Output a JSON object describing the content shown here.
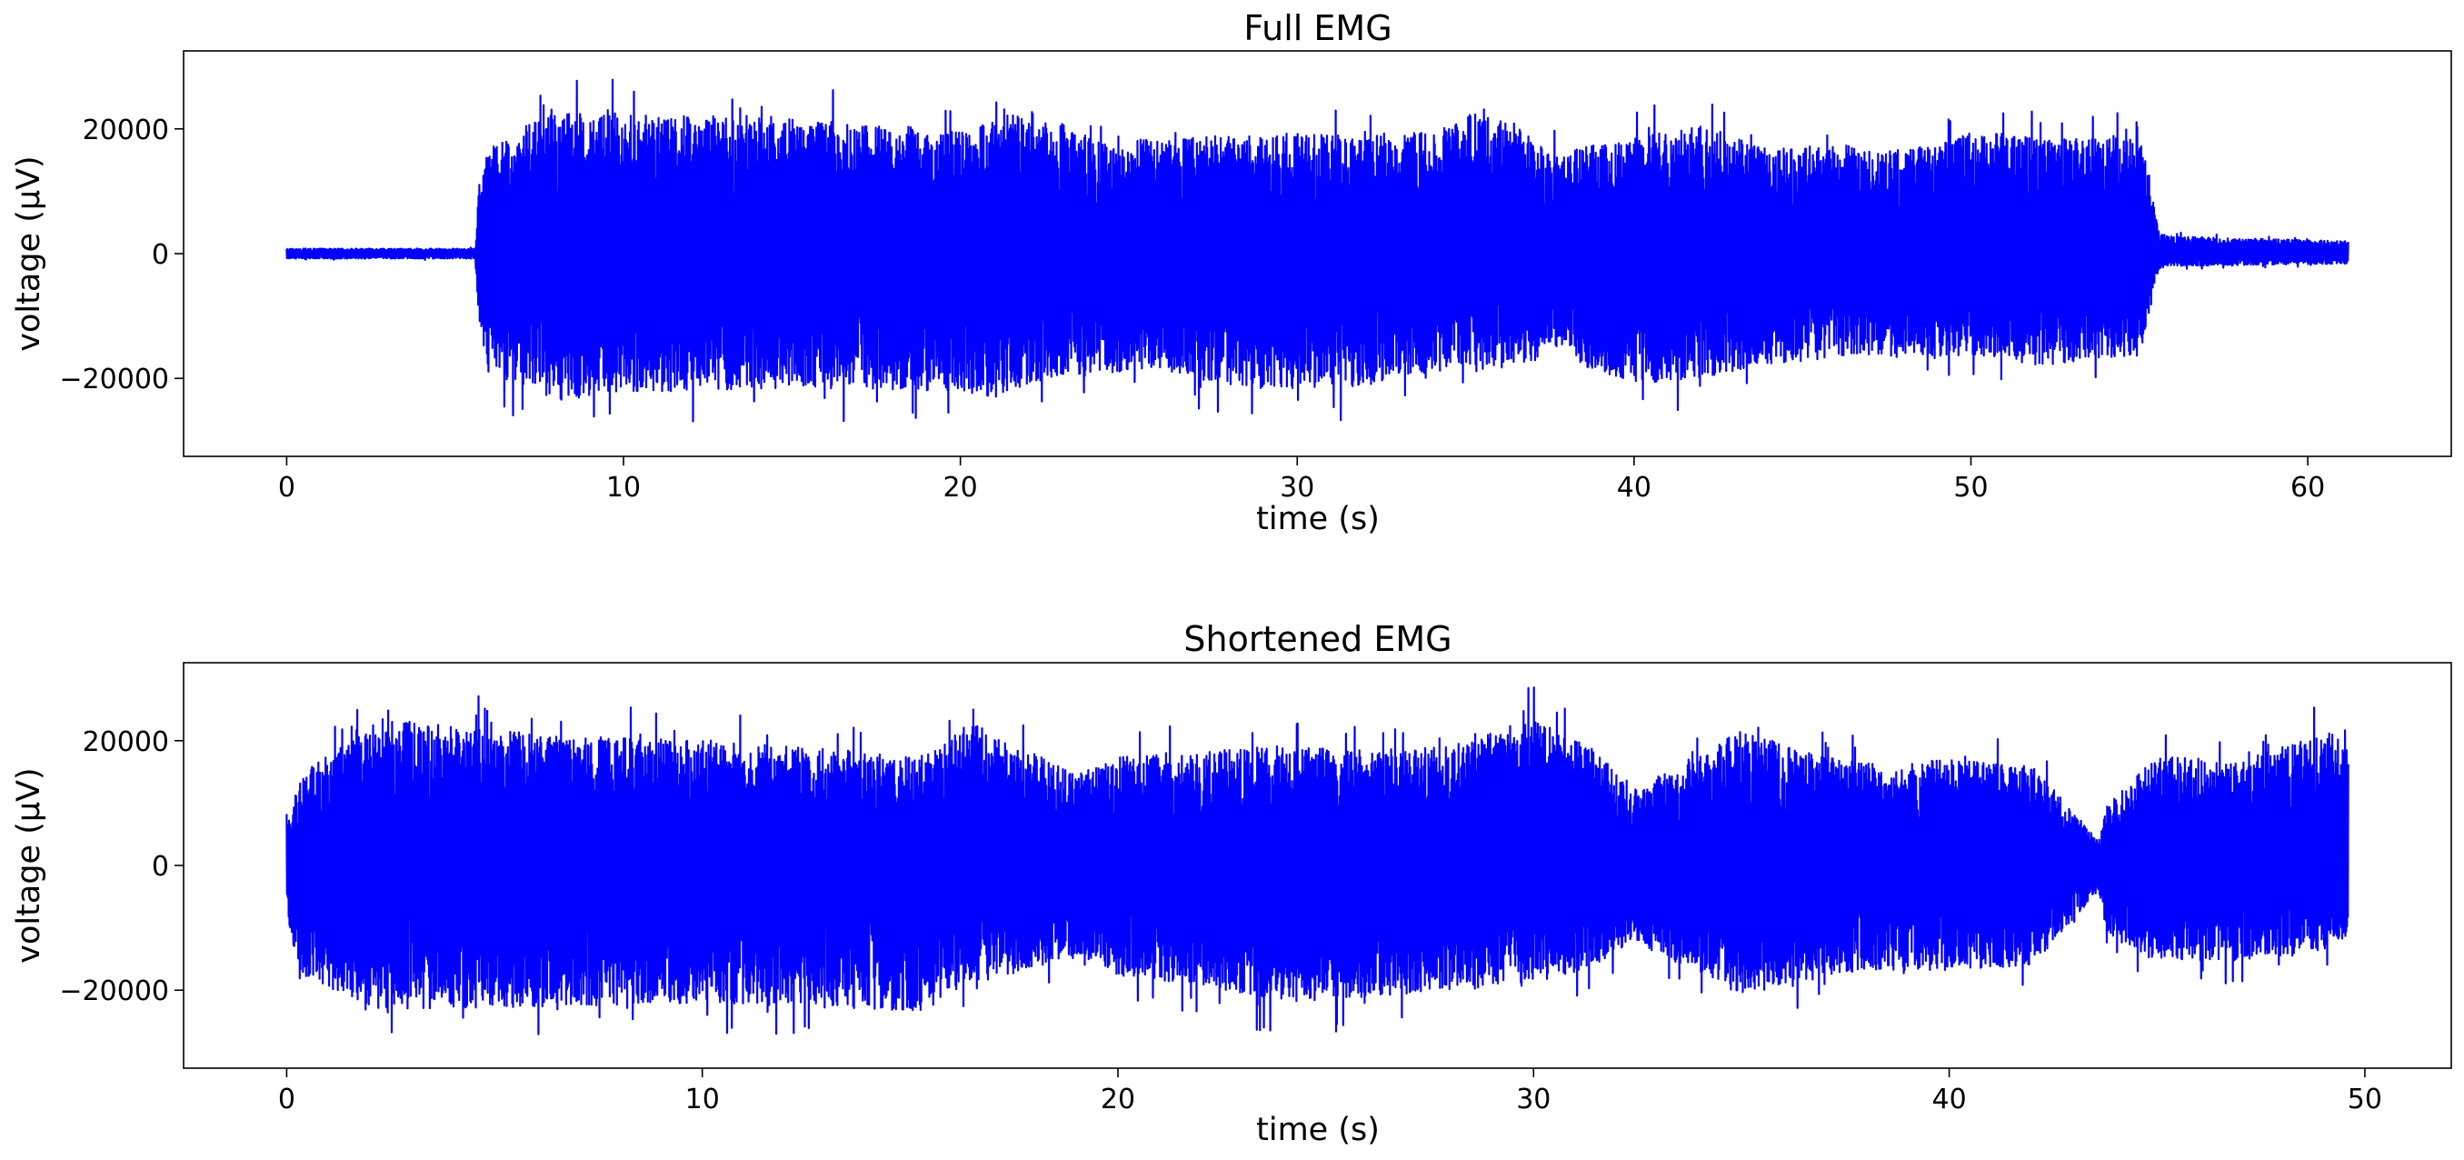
{
  "chart_data": [
    {
      "type": "line",
      "title": "Full EMG",
      "xlabel": "time (s)",
      "ylabel": "voltage (μV)",
      "xlim": [
        -3.06,
        64.26
      ],
      "ylim": [
        -32500,
        32500
      ],
      "xticks": [
        0,
        10,
        20,
        30,
        40,
        50,
        60
      ],
      "yticks": [
        -20000,
        0,
        20000
      ],
      "xtick_labels": [
        "0",
        "10",
        "20",
        "30",
        "40",
        "50",
        "60"
      ],
      "ytick_labels": [
        "−20000",
        "0",
        "20000"
      ],
      "grid": false,
      "legend": "none",
      "color": "#0000ff",
      "series": [
        {
          "x_range": [
            0,
            61.2
          ],
          "envelope": {
            "x": [
              0,
              5.6,
              5.7,
              6.0,
              8.0,
              10,
              15,
              20,
              21,
              22,
              24.5,
              25.5,
              28,
              30,
              32,
              34,
              35.7,
              37,
              38.0,
              38.2,
              40,
              42,
              44,
              46,
              48,
              49,
              50,
              52,
              54,
              55.0,
              55.6,
              56.0,
              61.2
            ],
            "upper": [
              1000,
              1000,
              14000,
              21000,
              29500,
              28000,
              27000,
              25000,
              27000,
              29000,
              22000,
              23000,
              24000,
              24000,
              23500,
              24500,
              29500,
              23000,
              19000,
              21000,
              23000,
              26000,
              21000,
              22000,
              21000,
              21500,
              25000,
              23000,
              23000,
              27000,
              4000,
              3500,
              2500
            ],
            "lower": [
              -1000,
              -1000,
              -13000,
              -24000,
              -29500,
              -28000,
              -27000,
              -27500,
              -29500,
              -26000,
              -24000,
              -23000,
              -26500,
              -27500,
              -26500,
              -24000,
              -23500,
              -22000,
              -18000,
              -22000,
              -26000,
              -25000,
              -22000,
              -21000,
              -20000,
              -21000,
              -20000,
              -22500,
              -21000,
              -20500,
              -3000,
              -2500,
              -2000
            ]
          }
        }
      ]
    },
    {
      "type": "line",
      "title": "Shortened EMG",
      "xlabel": "time (s)",
      "ylabel": "voltage (μV)",
      "xlim": [
        -2.48,
        52.08
      ],
      "ylim": [
        -32500,
        32500
      ],
      "xticks": [
        0,
        10,
        20,
        30,
        40,
        50
      ],
      "yticks": [
        -20000,
        0,
        20000
      ],
      "xtick_labels": [
        "0",
        "10",
        "20",
        "30",
        "40",
        "50"
      ],
      "ytick_labels": [
        "−20000",
        "0",
        "20000"
      ],
      "grid": false,
      "legend": "none",
      "color": "#0000ff",
      "series": [
        {
          "x_range": [
            0,
            49.6
          ],
          "envelope": {
            "x": [
              0,
              0.1,
              0.3,
              2.3,
              5,
              10,
              15.3,
              16.5,
              19.0,
              20,
              22,
              24,
              26,
              28,
              30,
              31.5,
              32.4,
              32.6,
              35,
              37,
              38.5,
              40,
              42,
              43.6,
              43.8,
              45,
              47,
              49.2,
              49.6
            ],
            "upper": [
              9000,
              10000,
              18000,
              29500,
              27000,
              25000,
              22000,
              29000,
              18000,
              22000,
              23000,
              24000,
              23000,
              24000,
              29500,
              23000,
              15000,
              16000,
              27000,
              22000,
              20000,
              21500,
              20000,
              5000,
              12000,
              22000,
              21000,
              27000,
              24000
            ],
            "lower": [
              -9000,
              -14000,
              -22000,
              -29000,
              -28500,
              -27500,
              -29500,
              -24000,
              -18000,
              -22000,
              -24000,
              -27500,
              -26500,
              -25000,
              -24000,
              -20000,
              -15000,
              -16000,
              -26000,
              -22000,
              -21000,
              -21000,
              -20000,
              -5000,
              -14000,
              -19000,
              -19000,
              -17000,
              -14000
            ]
          }
        }
      ]
    }
  ]
}
